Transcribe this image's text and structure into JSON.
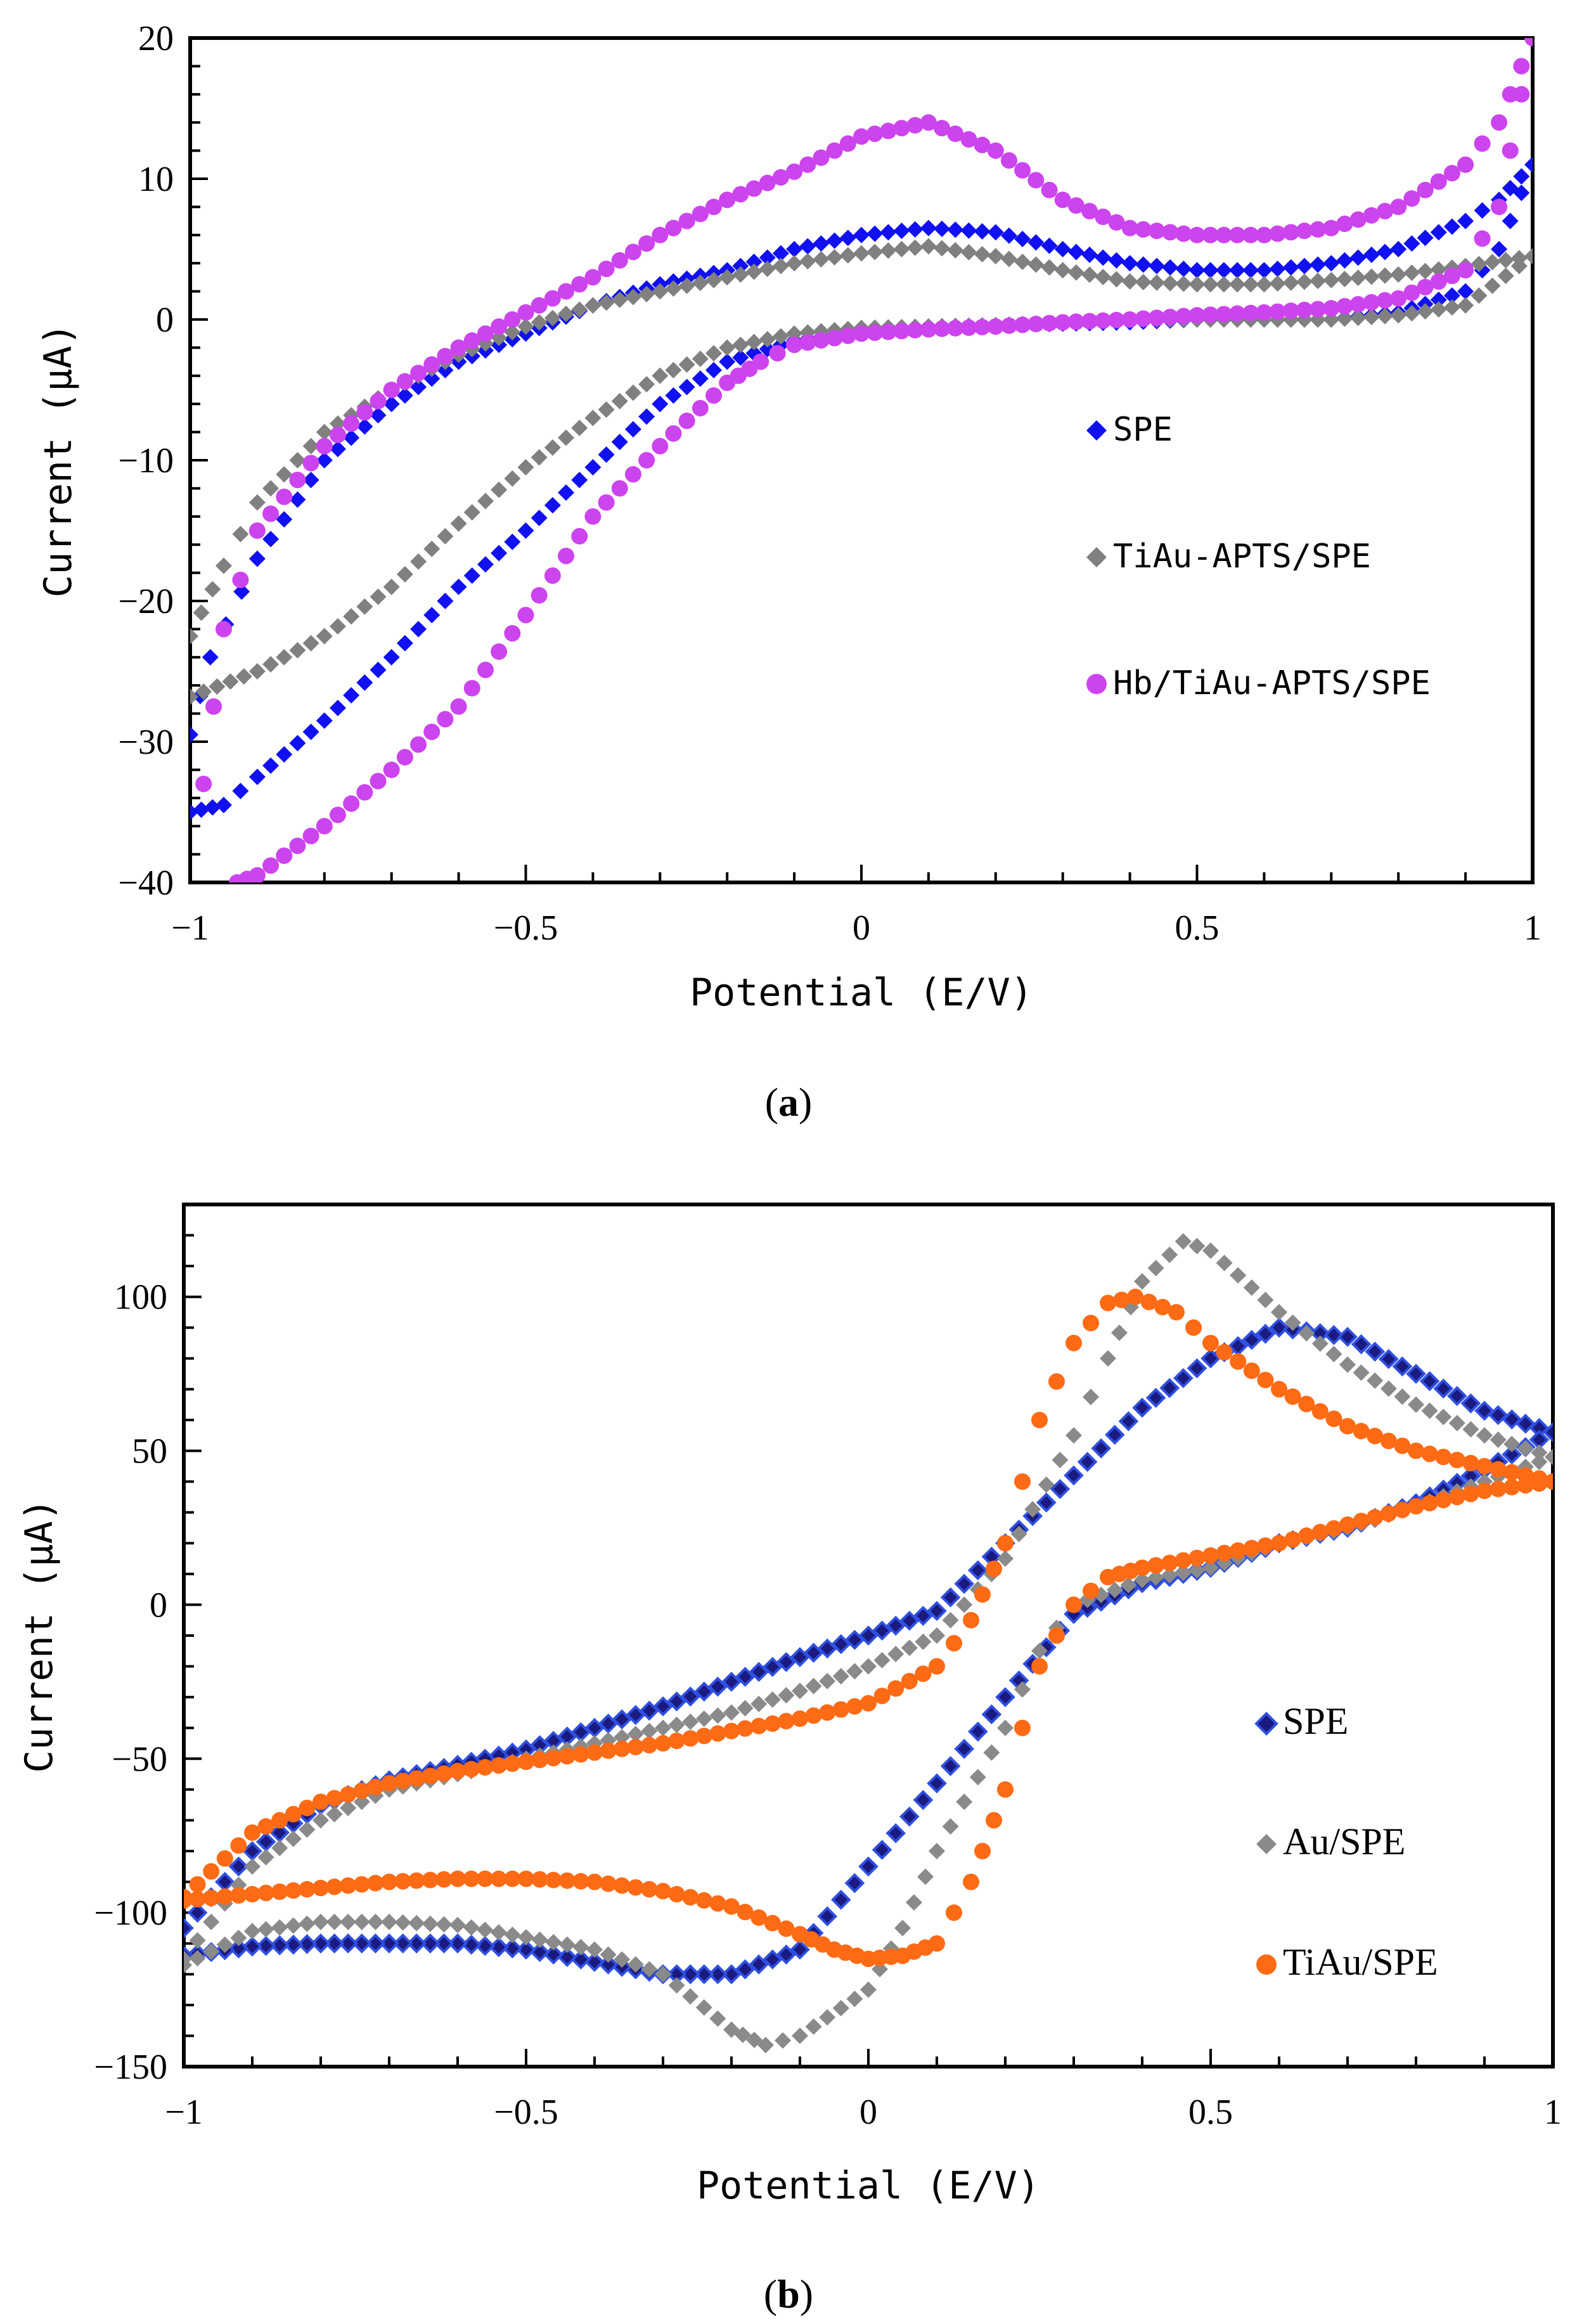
{
  "chart_data": [
    {
      "panel": "a",
      "caption_letter": "a",
      "type": "scatter",
      "title": "",
      "xlabel": "Potential (E/V)",
      "ylabel": "Current (μA)",
      "xlim": [
        -1,
        1
      ],
      "ylim": [
        -40,
        20
      ],
      "xticks": [
        -1,
        -0.5,
        0,
        0.5,
        1
      ],
      "xtick_labels": [
        "−1",
        "−0.5",
        "0",
        "0.5",
        "1"
      ],
      "yticks": [
        -40,
        -30,
        -20,
        -10,
        0,
        10,
        20
      ],
      "ytick_labels": [
        "−40",
        "−30",
        "−20",
        "−10",
        "0",
        "10",
        "20"
      ],
      "legend_placement": "center-right",
      "series": [
        {
          "name": "SPE",
          "color": "#1010f0",
          "marker": "diamond",
          "x": [
            -1.0,
            -0.97,
            -0.9,
            -0.8,
            -0.7,
            -0.6,
            -0.5,
            -0.4,
            -0.3,
            -0.2,
            -0.1,
            0.0,
            0.1,
            0.2,
            0.3,
            0.4,
            0.5,
            0.6,
            0.7,
            0.8,
            0.9,
            0.95,
            1.0,
            0.95,
            0.9,
            0.8,
            0.7,
            0.6,
            0.5,
            0.4,
            0.3,
            0.2,
            0.1,
            0.0,
            -0.1,
            -0.2,
            -0.3,
            -0.4,
            -0.5,
            -0.6,
            -0.7,
            -0.8,
            -0.9,
            -0.95,
            -1.0
          ],
          "y": [
            -29.5,
            -24,
            -17,
            -10,
            -6,
            -3,
            -1,
            1,
            2.5,
            3.5,
            5,
            6,
            6.5,
            6.2,
            5,
            4,
            3.5,
            3.5,
            4,
            5,
            7,
            8.5,
            11,
            5,
            2,
            0.5,
            0,
            0,
            0,
            -0.2,
            -0.3,
            -0.4,
            -0.5,
            -0.8,
            -1.5,
            -3,
            -6,
            -10.5,
            -15,
            -19,
            -24,
            -28.5,
            -32.5,
            -34.5,
            -35
          ]
        },
        {
          "name": "TiAu-APTS/SPE",
          "color": "#808080",
          "marker": "diamond",
          "x": [
            -1.0,
            -0.95,
            -0.9,
            -0.8,
            -0.7,
            -0.6,
            -0.5,
            -0.4,
            -0.3,
            -0.2,
            -0.1,
            0.0,
            0.1,
            0.2,
            0.3,
            0.4,
            0.5,
            0.6,
            0.7,
            0.8,
            0.9,
            1.0,
            0.9,
            0.8,
            0.7,
            0.6,
            0.5,
            0.4,
            0.3,
            0.2,
            0.1,
            0.0,
            -0.1,
            -0.2,
            -0.3,
            -0.4,
            -0.5,
            -0.6,
            -0.7,
            -0.8,
            -0.9,
            -1.0
          ],
          "y": [
            -22.5,
            -17.5,
            -13,
            -8,
            -5,
            -2.5,
            -0.5,
            1,
            2,
            3,
            4,
            4.7,
            5.2,
            4.5,
            3.5,
            2.7,
            2.5,
            2.5,
            2.8,
            3.2,
            3.8,
            4.5,
            1,
            0.3,
            0,
            0,
            0,
            0,
            -0.2,
            -0.4,
            -0.5,
            -0.6,
            -1,
            -2,
            -4,
            -7,
            -10.5,
            -14.5,
            -19,
            -22.5,
            -25,
            -26.8
          ]
        },
        {
          "name": "Hb/TiAu-APTS/SPE",
          "color": "#cc44ee",
          "marker": "circle",
          "x": [
            -0.98,
            -0.95,
            -0.9,
            -0.8,
            -0.7,
            -0.6,
            -0.5,
            -0.4,
            -0.3,
            -0.2,
            -0.1,
            0.0,
            0.1,
            0.2,
            0.3,
            0.4,
            0.5,
            0.6,
            0.7,
            0.8,
            0.9,
            0.95,
            1.0,
            0.95,
            0.9,
            0.8,
            0.7,
            0.6,
            0.5,
            0.4,
            0.3,
            0.2,
            0.1,
            0.0,
            -0.1,
            -0.15,
            -0.2,
            -0.3,
            -0.4,
            -0.5,
            -0.6,
            -0.7,
            -0.8,
            -0.9,
            -0.93
          ],
          "y": [
            -33,
            -22,
            -15,
            -9,
            -5,
            -2,
            0.5,
            3,
            6,
            8.5,
            10.5,
            13,
            14,
            12,
            8.5,
            6.5,
            6,
            6,
            6.5,
            8,
            11,
            14,
            20,
            8,
            3.5,
            1.5,
            0.8,
            0.5,
            0.3,
            0,
            -0.2,
            -0.5,
            -0.7,
            -1,
            -1.8,
            -3,
            -4.5,
            -9,
            -14,
            -21,
            -27.5,
            -32,
            -36,
            -39.5,
            -40
          ]
        }
      ]
    },
    {
      "panel": "b",
      "caption_letter": "b",
      "type": "scatter",
      "title": "",
      "xlabel": "Potential (E/V)",
      "ylabel": "Current (μA)",
      "xlim": [
        -1,
        1
      ],
      "ylim": [
        -150,
        130
      ],
      "xticks": [
        -1,
        -0.5,
        0,
        0.5,
        1
      ],
      "xtick_labels": [
        "−1",
        "−0.5",
        "0",
        "0.5",
        "1"
      ],
      "yticks": [
        -150,
        -100,
        -50,
        0,
        50,
        100
      ],
      "ytick_labels": [
        "−150",
        "−100",
        "−50",
        "0",
        "50",
        "100"
      ],
      "legend_placement": "bottom-right",
      "series": [
        {
          "name": "SPE",
          "color": "#1a1a80",
          "marker": "diamond",
          "x": [
            -1.0,
            -0.9,
            -0.8,
            -0.7,
            -0.6,
            -0.5,
            -0.4,
            -0.3,
            -0.2,
            -0.1,
            0.0,
            0.1,
            0.2,
            0.3,
            0.4,
            0.5,
            0.6,
            0.7,
            0.8,
            0.9,
            1.0,
            0.9,
            0.8,
            0.7,
            0.6,
            0.5,
            0.4,
            0.3,
            0.2,
            0.1,
            0.0,
            -0.1,
            -0.2,
            -0.3,
            -0.4,
            -0.5,
            -0.6,
            -0.7,
            -0.8,
            -0.9,
            -1.0
          ],
          "y": [
            -105,
            -80,
            -65,
            -57,
            -52,
            -47,
            -40,
            -33,
            -25,
            -17,
            -10,
            -2,
            20,
            42,
            64,
            80,
            90,
            87,
            75,
            63,
            56,
            44,
            33,
            25,
            20,
            12,
            7,
            -3,
            -30,
            -58,
            -85,
            -112,
            -120,
            -120,
            -116,
            -112,
            -110,
            -110,
            -110,
            -111,
            -114
          ]
        },
        {
          "name": "Au/SPE",
          "color": "#8a8a8a",
          "marker": "diamond",
          "x": [
            -1.0,
            -0.9,
            -0.8,
            -0.7,
            -0.6,
            -0.5,
            -0.4,
            -0.3,
            -0.2,
            -0.1,
            0.0,
            0.1,
            0.2,
            0.3,
            0.35,
            0.4,
            0.46,
            0.5,
            0.6,
            0.7,
            0.8,
            0.9,
            1.0,
            0.9,
            0.8,
            0.7,
            0.6,
            0.5,
            0.4,
            0.3,
            0.25,
            0.2,
            0.1,
            0.05,
            0.0,
            -0.1,
            -0.15,
            -0.2,
            -0.3,
            -0.4,
            -0.5,
            -0.6,
            -0.7,
            -0.8,
            -0.9,
            -1.0
          ],
          "y": [
            -115,
            -85,
            -70,
            -60,
            -55,
            -50,
            -45,
            -40,
            -35,
            -28,
            -20,
            -10,
            15,
            55,
            80,
            105,
            118,
            115,
            95,
            78,
            65,
            55,
            48,
            40,
            32,
            25,
            20,
            12,
            8,
            0,
            -15,
            -40,
            -80,
            -105,
            -125,
            -140,
            -143,
            -138,
            -120,
            -112,
            -108,
            -104,
            -103,
            -103,
            -106,
            -117
          ]
        },
        {
          "name": "TiAu/SPE",
          "color": "#ff6a14",
          "marker": "circle",
          "x": [
            -1.0,
            -0.9,
            -0.8,
            -0.7,
            -0.6,
            -0.5,
            -0.4,
            -0.3,
            -0.2,
            -0.1,
            0.0,
            0.1,
            0.15,
            0.2,
            0.25,
            0.3,
            0.35,
            0.39,
            0.45,
            0.5,
            0.6,
            0.7,
            0.8,
            0.9,
            1.0,
            0.9,
            0.8,
            0.7,
            0.6,
            0.5,
            0.4,
            0.35,
            0.3,
            0.25,
            0.2,
            0.15,
            0.1,
            0.05,
            0.0,
            -0.05,
            -0.1,
            -0.2,
            -0.3,
            -0.4,
            -0.5,
            -0.6,
            -0.7,
            -0.8,
            -0.9,
            -1.0
          ],
          "y": [
            -95,
            -74,
            -64,
            -58,
            -54,
            -51,
            -48,
            -45,
            -41,
            -37,
            -32,
            -20,
            -5,
            20,
            60,
            85,
            98,
            100,
            95,
            85,
            70,
            58,
            50,
            45,
            40,
            37,
            32,
            26,
            20,
            16,
            12,
            9,
            0,
            -20,
            -60,
            -90,
            -110,
            -114,
            -115,
            -112,
            -107,
            -98,
            -93,
            -90,
            -89,
            -89,
            -90,
            -92,
            -94,
            -96
          ]
        }
      ]
    }
  ]
}
